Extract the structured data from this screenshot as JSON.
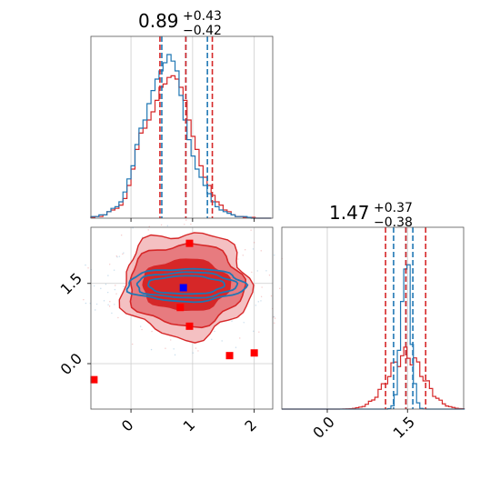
{
  "colors": {
    "red": "#d62728",
    "blue": "#1f77b4",
    "marker_red": "#ff0000",
    "marker_blue": "#0000ff",
    "grid": "#cccccc"
  },
  "titles": {
    "p1": {
      "value": "0.89",
      "plus": "+0.43",
      "minus": "−0.42"
    },
    "p2": {
      "value": "1.47",
      "plus": "+0.37",
      "minus": "−0.38"
    }
  },
  "chart_data": {
    "type": "corner",
    "axes": {
      "p1": {
        "range": [
          -0.65,
          2.3
        ],
        "ticks": [
          0,
          1,
          2
        ],
        "tick_labels": [
          "0",
          "1",
          "2"
        ]
      },
      "p2": {
        "range": [
          -0.85,
          2.55
        ],
        "ticks": [
          0.0,
          1.5
        ],
        "tick_labels": [
          "0.0",
          "1.5"
        ]
      }
    },
    "hist_p1": {
      "bin_edges_start": -0.65,
      "bin_width": 0.065,
      "red": [
        0.005,
        0.01,
        0.01,
        0.02,
        0.04,
        0.05,
        0.06,
        0.08,
        0.12,
        0.2,
        0.3,
        0.42,
        0.52,
        0.55,
        0.6,
        0.65,
        0.72,
        0.8,
        0.82,
        0.86,
        0.87,
        0.85,
        0.8,
        0.72,
        0.6,
        0.5,
        0.42,
        0.32,
        0.25,
        0.2,
        0.14,
        0.1,
        0.08,
        0.05,
        0.04,
        0.02,
        0.01,
        0.01,
        0.005,
        0.005,
        0.005,
        0.0,
        0.0,
        0.0,
        0.0
      ],
      "blue": [
        0.01,
        0.01,
        0.02,
        0.02,
        0.04,
        0.06,
        0.07,
        0.1,
        0.16,
        0.24,
        0.32,
        0.45,
        0.55,
        0.6,
        0.7,
        0.78,
        0.85,
        0.9,
        0.95,
        1.0,
        0.96,
        0.9,
        0.75,
        0.6,
        0.48,
        0.38,
        0.3,
        0.25,
        0.2,
        0.15,
        0.1,
        0.07,
        0.05,
        0.04,
        0.03,
        0.02,
        0.01,
        0.01,
        0.01,
        0.005,
        0.0,
        0.0,
        0.0,
        0.0,
        0.0
      ],
      "red_quantiles": [
        0.47,
        0.89,
        1.32
      ],
      "blue_quantiles": [
        0.5,
        0.89,
        1.24
      ]
    },
    "hist_p2": {
      "bin_edges_start": -0.85,
      "bin_width": 0.06,
      "red_quantiles": [
        1.09,
        1.47,
        1.84
      ],
      "blue_quantiles": [
        1.24,
        1.47,
        1.6
      ]
    },
    "contour_center": [
      0.89,
      1.47
    ],
    "red_markers": [
      [
        0.95,
        2.25
      ],
      [
        0.8,
        1.05
      ],
      [
        0.95,
        0.7
      ],
      [
        1.6,
        0.15
      ],
      [
        2.0,
        0.2
      ],
      [
        -0.6,
        -0.3
      ]
    ],
    "blue_markers": [
      [
        0.85,
        1.42
      ]
    ]
  }
}
